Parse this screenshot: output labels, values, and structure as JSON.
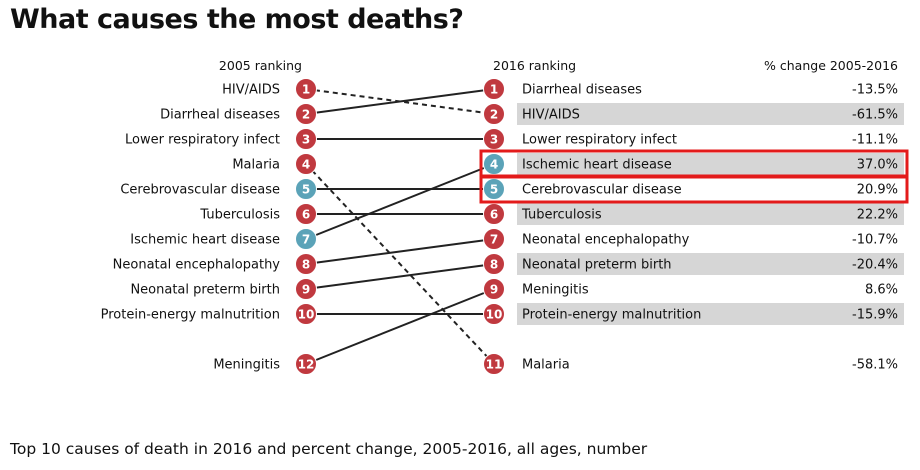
{
  "title": "What causes the most deaths?",
  "caption": "Top 10 causes of death in 2016 and percent change, 2005-2016, all ages, number",
  "headers": {
    "left": "2005 ranking",
    "middle": "2016 ranking",
    "right": "% change 2005-2016"
  },
  "colors": {
    "communicable": "#c0393f",
    "noncommunicable": "#5ba3b8",
    "highlight_row": "#d6d6d6",
    "highlight_box": "#e31b1b",
    "line": "#222222"
  },
  "chart_data": {
    "type": "slope",
    "title": "What causes the most deaths?",
    "subtitle": "Top 10 causes of death in 2016 and percent change, 2005-2016, all ages, number",
    "left_label": "2005 ranking",
    "right_label": "2016 ranking",
    "change_label": "% change 2005-2016",
    "causes_2005": [
      {
        "rank": 1,
        "cause": "HIV/AIDS",
        "group": "communicable"
      },
      {
        "rank": 2,
        "cause": "Diarrheal diseases",
        "group": "communicable"
      },
      {
        "rank": 3,
        "cause": "Lower respiratory infect",
        "group": "communicable"
      },
      {
        "rank": 4,
        "cause": "Malaria",
        "group": "communicable"
      },
      {
        "rank": 5,
        "cause": "Cerebrovascular disease",
        "group": "noncommunicable"
      },
      {
        "rank": 6,
        "cause": "Tuberculosis",
        "group": "communicable"
      },
      {
        "rank": 7,
        "cause": "Ischemic heart disease",
        "group": "noncommunicable"
      },
      {
        "rank": 8,
        "cause": "Neonatal encephalopathy",
        "group": "communicable"
      },
      {
        "rank": 9,
        "cause": "Neonatal preterm birth",
        "group": "communicable"
      },
      {
        "rank": 10,
        "cause": "Protein-energy malnutrition",
        "group": "communicable"
      },
      {
        "rank": 12,
        "cause": "Meningitis",
        "group": "communicable"
      }
    ],
    "causes_2016": [
      {
        "rank": 1,
        "cause": "Diarrheal diseases",
        "group": "communicable",
        "change": "-13.5%",
        "shaded": false,
        "boxed": false
      },
      {
        "rank": 2,
        "cause": "HIV/AIDS",
        "group": "communicable",
        "change": "-61.5%",
        "shaded": true,
        "boxed": false
      },
      {
        "rank": 3,
        "cause": "Lower respiratory infect",
        "group": "communicable",
        "change": "-11.1%",
        "shaded": false,
        "boxed": false
      },
      {
        "rank": 4,
        "cause": "Ischemic heart disease",
        "group": "noncommunicable",
        "change": "37.0%",
        "shaded": true,
        "boxed": true
      },
      {
        "rank": 5,
        "cause": "Cerebrovascular disease",
        "group": "noncommunicable",
        "change": "20.9%",
        "shaded": false,
        "boxed": true
      },
      {
        "rank": 6,
        "cause": "Tuberculosis",
        "group": "communicable",
        "change": "22.2%",
        "shaded": true,
        "boxed": false
      },
      {
        "rank": 7,
        "cause": "Neonatal encephalopathy",
        "group": "communicable",
        "change": "-10.7%",
        "shaded": false,
        "boxed": false
      },
      {
        "rank": 8,
        "cause": "Neonatal preterm birth",
        "group": "communicable",
        "change": "-20.4%",
        "shaded": true,
        "boxed": false
      },
      {
        "rank": 9,
        "cause": "Meningitis",
        "group": "communicable",
        "change": "8.6%",
        "shaded": false,
        "boxed": false
      },
      {
        "rank": 10,
        "cause": "Protein-energy malnutrition",
        "group": "communicable",
        "change": "-15.9%",
        "shaded": true,
        "boxed": false
      },
      {
        "rank": 11,
        "cause": "Malaria",
        "group": "communicable",
        "change": "-58.1%",
        "shaded": false,
        "boxed": false
      }
    ],
    "links": [
      {
        "cause": "HIV/AIDS",
        "from": 1,
        "to": 2,
        "style": "dashed"
      },
      {
        "cause": "Diarrheal diseases",
        "from": 2,
        "to": 1,
        "style": "solid"
      },
      {
        "cause": "Lower respiratory infect",
        "from": 3,
        "to": 3,
        "style": "solid"
      },
      {
        "cause": "Malaria",
        "from": 4,
        "to": 11,
        "style": "dashed"
      },
      {
        "cause": "Cerebrovascular disease",
        "from": 5,
        "to": 5,
        "style": "solid"
      },
      {
        "cause": "Tuberculosis",
        "from": 6,
        "to": 6,
        "style": "solid"
      },
      {
        "cause": "Ischemic heart disease",
        "from": 7,
        "to": 4,
        "style": "solid"
      },
      {
        "cause": "Neonatal encephalopathy",
        "from": 8,
        "to": 7,
        "style": "solid"
      },
      {
        "cause": "Neonatal preterm birth",
        "from": 9,
        "to": 8,
        "style": "solid"
      },
      {
        "cause": "Protein-energy malnutrition",
        "from": 10,
        "to": 10,
        "style": "solid"
      },
      {
        "cause": "Meningitis",
        "from": 12,
        "to": 9,
        "style": "solid"
      }
    ]
  }
}
